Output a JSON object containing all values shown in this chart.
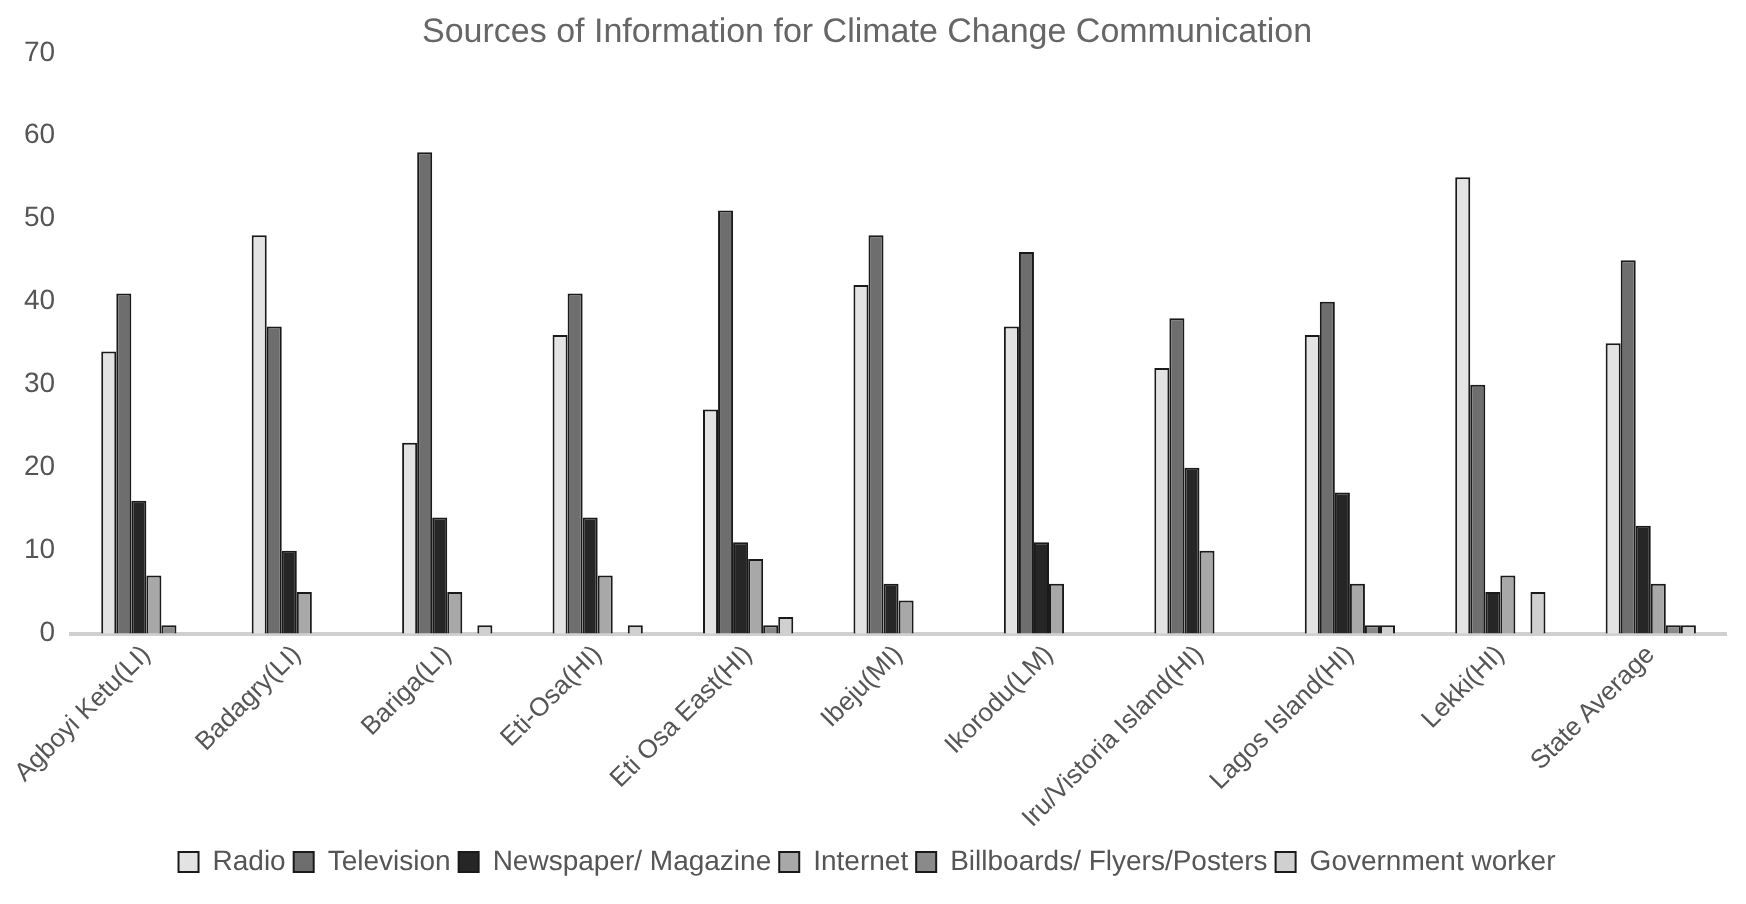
{
  "chart_data": {
    "type": "bar",
    "title": "Sources of Information for Climate Change Communication",
    "categories": [
      "Agboyi Ketu(LI)",
      "Badagry(LI)",
      "Bariga(LI)",
      "Eti-Osa(HI)",
      "Eti Osa East(HI)",
      "Ibeju(MI)",
      "Ikorodu(LM)",
      "Iru/Vistoria Island(HI)",
      "Lagos Island(HI)",
      "Lekki(HI)",
      "State Average"
    ],
    "series": [
      {
        "name": "Radio",
        "color": "#e3e3e3",
        "values": [
          34,
          48,
          23,
          36,
          27,
          42,
          37,
          32,
          36,
          55,
          35
        ]
      },
      {
        "name": "Television",
        "color": "#6e6e6e",
        "values": [
          41,
          37,
          58,
          41,
          51,
          48,
          46,
          38,
          40,
          30,
          45
        ]
      },
      {
        "name": "Newspaper/ Magazine",
        "color": "#262626",
        "values": [
          16,
          10,
          14,
          14,
          11,
          6,
          11,
          20,
          17,
          5,
          13
        ]
      },
      {
        "name": "Internet",
        "color": "#a8a8a8",
        "values": [
          7,
          5,
          5,
          7,
          9,
          4,
          6,
          10,
          6,
          7,
          6
        ]
      },
      {
        "name": "Billboards/ Flyers/Posters",
        "color": "#8a8a8a",
        "values": [
          1,
          null,
          null,
          null,
          1,
          null,
          null,
          null,
          1,
          null,
          1
        ]
      },
      {
        "name": "Government worker",
        "color": "#d0d0d0",
        "values": [
          null,
          null,
          1,
          1,
          2,
          null,
          null,
          null,
          1,
          5,
          1
        ]
      }
    ],
    "ylim": [
      0,
      70
    ],
    "yticks": [
      0,
      10,
      20,
      30,
      40,
      50,
      60,
      70
    ],
    "grid": false,
    "legend": "bottom"
  }
}
